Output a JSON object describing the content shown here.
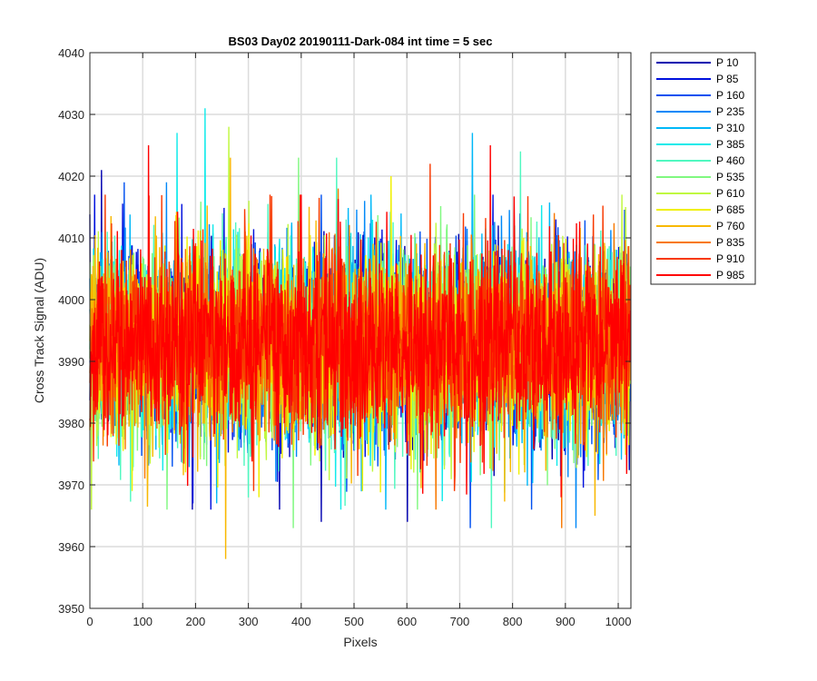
{
  "chart_data": {
    "type": "line",
    "title": "BS03 Day02 20190111-Dark-084 int time = 5 sec",
    "xlabel": "Pixels",
    "ylabel": "Cross Track Signal (ADU)",
    "xlim": [
      0,
      1024
    ],
    "ylim": [
      3950,
      4040
    ],
    "xticks": [
      0,
      100,
      200,
      300,
      400,
      500,
      600,
      700,
      800,
      900,
      1000
    ],
    "yticks": [
      3950,
      3960,
      3970,
      3980,
      3990,
      4000,
      4010,
      4020,
      4030,
      4040
    ],
    "grid": true,
    "legend_position": "outside-top-right",
    "sampling": {
      "n_points": 1024,
      "mean": 3993,
      "std": 7.5
    },
    "series": [
      {
        "name": "P 10",
        "color": "#0000b0",
        "peaks": [
          [
            22,
            4021
          ],
          [
            438,
            3964
          ],
          [
            601,
            3964
          ]
        ]
      },
      {
        "name": "P 85",
        "color": "#0010dd",
        "peaks": [
          [
            9,
            4017
          ],
          [
            195,
            3967
          ],
          [
            882,
            4013
          ]
        ]
      },
      {
        "name": "P 160",
        "color": "#0050f0",
        "peaks": [
          [
            65,
            4019
          ],
          [
            720,
            3963
          ],
          [
            836,
            3966
          ]
        ]
      },
      {
        "name": "P 235",
        "color": "#0088f8",
        "peaks": [
          [
            145,
            4019
          ],
          [
            520,
            4016
          ],
          [
            920,
            3963
          ]
        ]
      },
      {
        "name": "P 310",
        "color": "#00b8f8",
        "peaks": [
          [
            724,
            4027
          ],
          [
            240,
            3967
          ],
          [
            560,
            3966
          ]
        ]
      },
      {
        "name": "P 385",
        "color": "#10eaea",
        "peaks": [
          [
            218,
            4031
          ],
          [
            165,
            4027
          ],
          [
            475,
            3966
          ]
        ]
      },
      {
        "name": "P 460",
        "color": "#50f8c0",
        "peaks": [
          [
            467,
            4023
          ],
          [
            815,
            4024
          ],
          [
            760,
            3963
          ]
        ]
      },
      {
        "name": "P 535",
        "color": "#80f880",
        "peaks": [
          [
            395,
            4023
          ],
          [
            385,
            3963
          ],
          [
            620,
            3966
          ]
        ]
      },
      {
        "name": "P 610",
        "color": "#c0f840",
        "peaks": [
          [
            263,
            4028
          ],
          [
            3,
            3966
          ],
          [
            1014,
            4015
          ]
        ]
      },
      {
        "name": "P 685",
        "color": "#f0f000",
        "peaks": [
          [
            570,
            4020
          ],
          [
            320,
            3968
          ],
          [
            80,
            3969
          ]
        ]
      },
      {
        "name": "P 760",
        "color": "#f8b800",
        "peaks": [
          [
            257,
            3958
          ],
          [
            266,
            4023
          ],
          [
            956,
            3965
          ]
        ]
      },
      {
        "name": "P 835",
        "color": "#f87800",
        "peaks": [
          [
            893,
            3963
          ],
          [
            470,
            4018
          ],
          [
            655,
            3966
          ]
        ]
      },
      {
        "name": "P 910",
        "color": "#f83800",
        "peaks": [
          [
            644,
            4022
          ],
          [
            310,
            3969
          ],
          [
            690,
            3969
          ]
        ]
      },
      {
        "name": "P 985",
        "color": "#ff0000",
        "peaks": [
          [
            111,
            4025
          ],
          [
            758,
            4025
          ],
          [
            892,
            3968
          ]
        ]
      }
    ]
  }
}
